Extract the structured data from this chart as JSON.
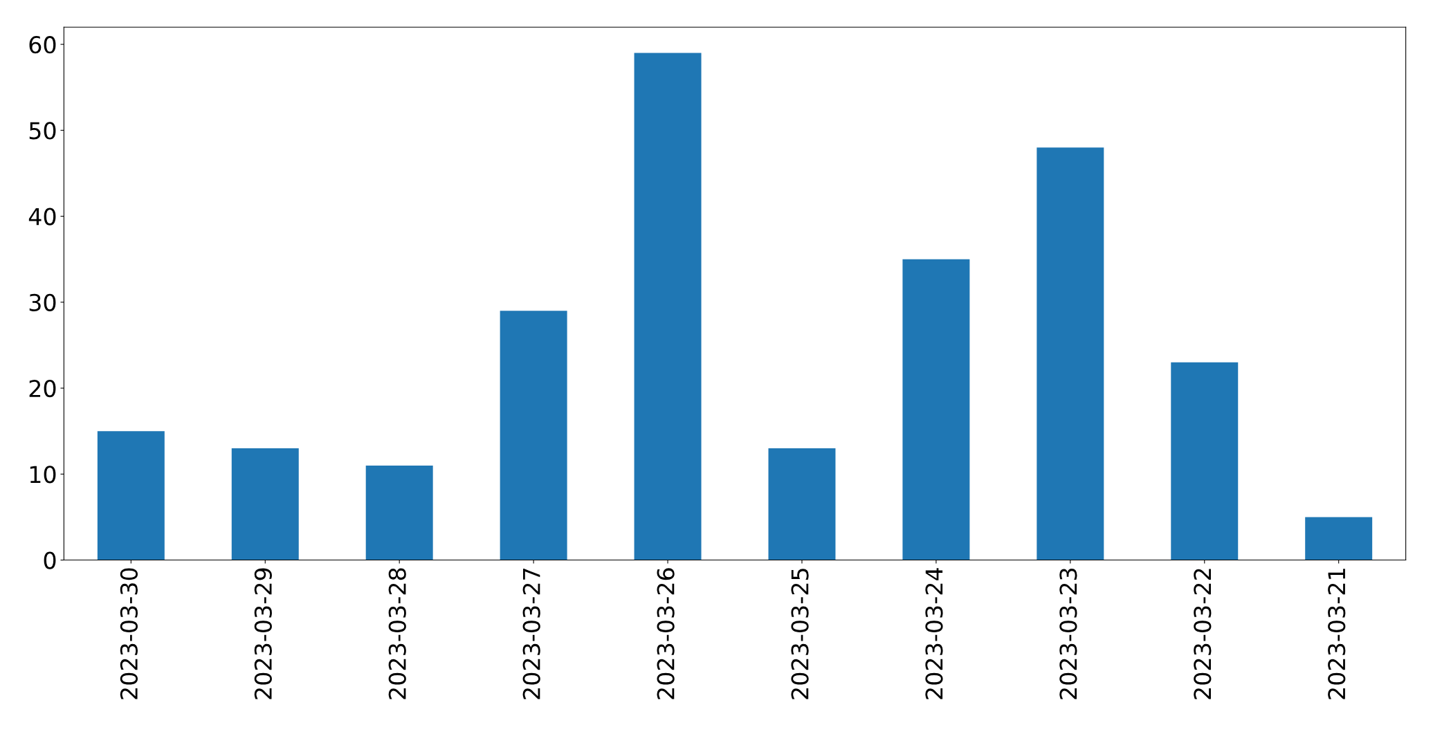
{
  "chart_data": {
    "type": "bar",
    "categories": [
      "2023-03-30",
      "2023-03-29",
      "2023-03-28",
      "2023-03-27",
      "2023-03-26",
      "2023-03-25",
      "2023-03-24",
      "2023-03-23",
      "2023-03-22",
      "2023-03-21"
    ],
    "values": [
      15,
      13,
      11,
      29,
      59,
      13,
      35,
      48,
      23,
      5
    ],
    "color": "#1f77b4",
    "ylim": [
      0,
      62
    ],
    "yticks": [
      0,
      10,
      20,
      30,
      40,
      50,
      60
    ],
    "grid": false
  }
}
